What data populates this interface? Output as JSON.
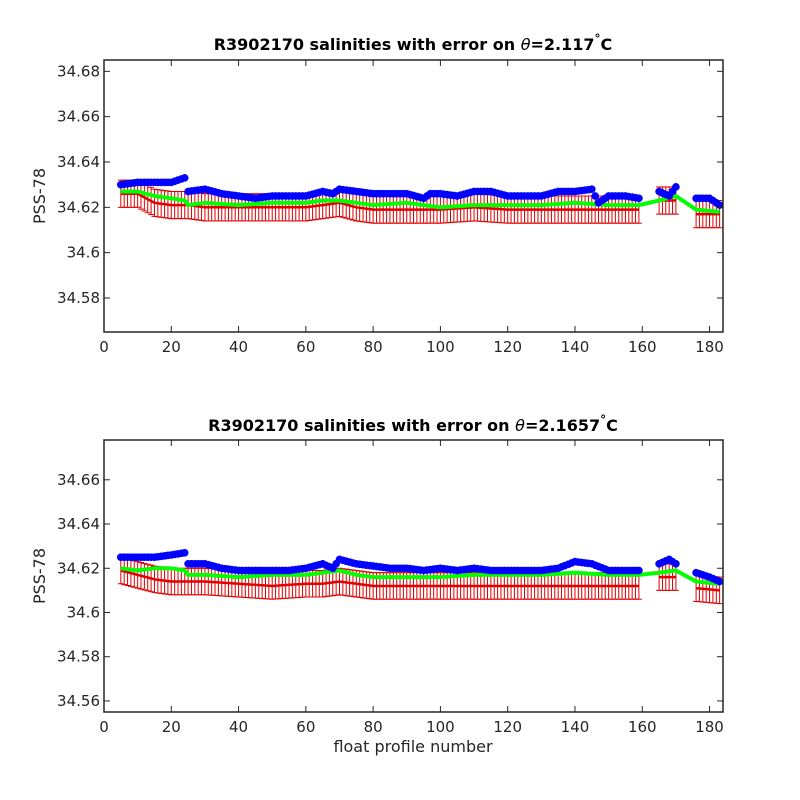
{
  "chart_data": [
    {
      "type": "scatter",
      "title_prefix": "R3902170 salinities with error on ",
      "title_theta": "θ",
      "title_value": "=2.117",
      "title_deg": "°",
      "title_unit": "C",
      "xlabel": "",
      "ylabel": "PSS-78",
      "xlim": [
        0,
        184
      ],
      "ylim": [
        34.565,
        34.685
      ],
      "xticks": [
        0,
        20,
        40,
        60,
        80,
        100,
        120,
        140,
        160,
        180
      ],
      "xtick_labels": [
        "0",
        "20",
        "40",
        "60",
        "80",
        "100",
        "120",
        "140",
        "160",
        "180"
      ],
      "yticks": [
        34.58,
        34.6,
        34.62,
        34.64,
        34.66,
        34.68
      ],
      "ytick_labels": [
        "34.58",
        "34.6",
        "34.62",
        "34.64",
        "34.66",
        "34.68"
      ],
      "grid": false,
      "colors": {
        "blue": "#0000ff",
        "red": "#e00000",
        "green": "#00ff00"
      },
      "segments": [
        [
          5,
          159
        ],
        [
          165,
          170
        ],
        [
          176,
          183
        ]
      ],
      "series": [
        {
          "color": "blue",
          "marker": "dot",
          "values": [
            [
              5,
              34.63
            ],
            [
              10,
              34.631
            ],
            [
              15,
              34.631
            ],
            [
              20,
              34.631
            ],
            [
              24,
              34.633
            ],
            [
              25,
              34.627
            ],
            [
              30,
              34.628
            ],
            [
              35,
              34.626
            ],
            [
              40,
              34.625
            ],
            [
              45,
              34.624
            ],
            [
              50,
              34.625
            ],
            [
              55,
              34.625
            ],
            [
              60,
              34.625
            ],
            [
              65,
              34.627
            ],
            [
              68,
              34.626
            ],
            [
              70,
              34.628
            ],
            [
              75,
              34.627
            ],
            [
              80,
              34.626
            ],
            [
              85,
              34.626
            ],
            [
              90,
              34.626
            ],
            [
              95,
              34.624
            ],
            [
              97,
              34.626
            ],
            [
              100,
              34.626
            ],
            [
              105,
              34.625
            ],
            [
              110,
              34.627
            ],
            [
              115,
              34.627
            ],
            [
              120,
              34.625
            ],
            [
              125,
              34.625
            ],
            [
              130,
              34.625
            ],
            [
              135,
              34.627
            ],
            [
              140,
              34.627
            ],
            [
              145,
              34.628
            ],
            [
              147,
              34.622
            ],
            [
              150,
              34.625
            ],
            [
              155,
              34.625
            ],
            [
              159,
              34.624
            ],
            [
              165,
              34.627
            ],
            [
              168,
              34.625
            ],
            [
              170,
              34.629
            ],
            [
              176,
              34.624
            ],
            [
              180,
              34.624
            ],
            [
              183,
              34.621
            ]
          ]
        },
        {
          "color": "green",
          "marker": "line",
          "values": [
            [
              5,
              34.627
            ],
            [
              10,
              34.627
            ],
            [
              15,
              34.625
            ],
            [
              20,
              34.624
            ],
            [
              24,
              34.623
            ],
            [
              25,
              34.621
            ],
            [
              30,
              34.622
            ],
            [
              40,
              34.621
            ],
            [
              50,
              34.622
            ],
            [
              60,
              34.622
            ],
            [
              65,
              34.623
            ],
            [
              70,
              34.623
            ],
            [
              75,
              34.622
            ],
            [
              80,
              34.621
            ],
            [
              90,
              34.622
            ],
            [
              100,
              34.62
            ],
            [
              110,
              34.621
            ],
            [
              120,
              34.621
            ],
            [
              130,
              34.621
            ],
            [
              140,
              34.622
            ],
            [
              150,
              34.621
            ],
            [
              159,
              34.621
            ],
            [
              165,
              34.623
            ],
            [
              170,
              34.625
            ],
            [
              176,
              34.619
            ],
            [
              183,
              34.618
            ]
          ]
        },
        {
          "color": "red",
          "marker": "line-errorbar",
          "err": 0.006,
          "values": [
            [
              5,
              34.626
            ],
            [
              10,
              34.626
            ],
            [
              15,
              34.622
            ],
            [
              20,
              34.621
            ],
            [
              24,
              34.621
            ],
            [
              25,
              34.621
            ],
            [
              30,
              34.62
            ],
            [
              40,
              34.62
            ],
            [
              50,
              34.62
            ],
            [
              60,
              34.62
            ],
            [
              65,
              34.621
            ],
            [
              70,
              34.622
            ],
            [
              75,
              34.62
            ],
            [
              80,
              34.619
            ],
            [
              90,
              34.619
            ],
            [
              100,
              34.619
            ],
            [
              110,
              34.62
            ],
            [
              120,
              34.619
            ],
            [
              130,
              34.619
            ],
            [
              140,
              34.619
            ],
            [
              150,
              34.619
            ],
            [
              159,
              34.619
            ],
            [
              165,
              34.623
            ],
            [
              170,
              34.623
            ],
            [
              176,
              34.617
            ],
            [
              183,
              34.617
            ]
          ]
        }
      ]
    },
    {
      "type": "scatter",
      "title_prefix": "R3902170 salinities with error on ",
      "title_theta": "θ",
      "title_value": "=2.1657",
      "title_deg": "°",
      "title_unit": "C",
      "xlabel": "float profile number",
      "ylabel": "PSS-78",
      "xlim": [
        0,
        184
      ],
      "ylim": [
        34.555,
        34.678
      ],
      "xticks": [
        0,
        20,
        40,
        60,
        80,
        100,
        120,
        140,
        160,
        180
      ],
      "xtick_labels": [
        "0",
        "20",
        "40",
        "60",
        "80",
        "100",
        "120",
        "140",
        "160",
        "180"
      ],
      "yticks": [
        34.56,
        34.58,
        34.6,
        34.62,
        34.64,
        34.66
      ],
      "ytick_labels": [
        "34.56",
        "34.58",
        "34.6",
        "34.62",
        "34.64",
        "34.66"
      ],
      "grid": false,
      "colors": {
        "blue": "#0000ff",
        "red": "#e00000",
        "green": "#00ff00"
      },
      "segments": [
        [
          5,
          159
        ],
        [
          165,
          170
        ],
        [
          176,
          183
        ]
      ],
      "series": [
        {
          "color": "blue",
          "marker": "dot",
          "values": [
            [
              5,
              34.625
            ],
            [
              10,
              34.625
            ],
            [
              15,
              34.625
            ],
            [
              20,
              34.626
            ],
            [
              24,
              34.627
            ],
            [
              25,
              34.622
            ],
            [
              30,
              34.622
            ],
            [
              35,
              34.62
            ],
            [
              40,
              34.619
            ],
            [
              45,
              34.619
            ],
            [
              50,
              34.619
            ],
            [
              55,
              34.619
            ],
            [
              60,
              34.62
            ],
            [
              65,
              34.622
            ],
            [
              68,
              34.62
            ],
            [
              70,
              34.624
            ],
            [
              75,
              34.622
            ],
            [
              80,
              34.621
            ],
            [
              85,
              34.62
            ],
            [
              90,
              34.62
            ],
            [
              95,
              34.619
            ],
            [
              100,
              34.62
            ],
            [
              105,
              34.619
            ],
            [
              110,
              34.62
            ],
            [
              115,
              34.619
            ],
            [
              120,
              34.619
            ],
            [
              125,
              34.619
            ],
            [
              130,
              34.619
            ],
            [
              135,
              34.62
            ],
            [
              140,
              34.623
            ],
            [
              145,
              34.622
            ],
            [
              150,
              34.619
            ],
            [
              155,
              34.619
            ],
            [
              159,
              34.619
            ],
            [
              165,
              34.622
            ],
            [
              168,
              34.624
            ],
            [
              170,
              34.622
            ],
            [
              176,
              34.618
            ],
            [
              180,
              34.616
            ],
            [
              183,
              34.614
            ]
          ]
        },
        {
          "color": "green",
          "marker": "line",
          "values": [
            [
              5,
              34.62
            ],
            [
              10,
              34.619
            ],
            [
              15,
              34.62
            ],
            [
              20,
              34.62
            ],
            [
              24,
              34.619
            ],
            [
              25,
              34.617
            ],
            [
              30,
              34.617
            ],
            [
              40,
              34.616
            ],
            [
              50,
              34.617
            ],
            [
              60,
              34.617
            ],
            [
              65,
              34.618
            ],
            [
              70,
              34.619
            ],
            [
              75,
              34.617
            ],
            [
              80,
              34.616
            ],
            [
              90,
              34.616
            ],
            [
              100,
              34.616
            ],
            [
              110,
              34.617
            ],
            [
              120,
              34.617
            ],
            [
              130,
              34.617
            ],
            [
              140,
              34.618
            ],
            [
              150,
              34.617
            ],
            [
              159,
              34.617
            ],
            [
              165,
              34.618
            ],
            [
              170,
              34.619
            ],
            [
              176,
              34.614
            ],
            [
              183,
              34.613
            ]
          ]
        },
        {
          "color": "red",
          "marker": "line-errorbar",
          "err": 0.006,
          "values": [
            [
              5,
              34.619
            ],
            [
              10,
              34.617
            ],
            [
              15,
              34.615
            ],
            [
              20,
              34.614
            ],
            [
              24,
              34.614
            ],
            [
              25,
              34.614
            ],
            [
              30,
              34.614
            ],
            [
              40,
              34.613
            ],
            [
              50,
              34.612
            ],
            [
              60,
              34.613
            ],
            [
              65,
              34.613
            ],
            [
              70,
              34.614
            ],
            [
              75,
              34.613
            ],
            [
              80,
              34.612
            ],
            [
              90,
              34.612
            ],
            [
              100,
              34.612
            ],
            [
              110,
              34.612
            ],
            [
              120,
              34.612
            ],
            [
              130,
              34.612
            ],
            [
              140,
              34.612
            ],
            [
              150,
              34.612
            ],
            [
              159,
              34.612
            ],
            [
              165,
              34.616
            ],
            [
              170,
              34.616
            ],
            [
              176,
              34.611
            ],
            [
              183,
              34.61
            ]
          ]
        }
      ]
    }
  ]
}
